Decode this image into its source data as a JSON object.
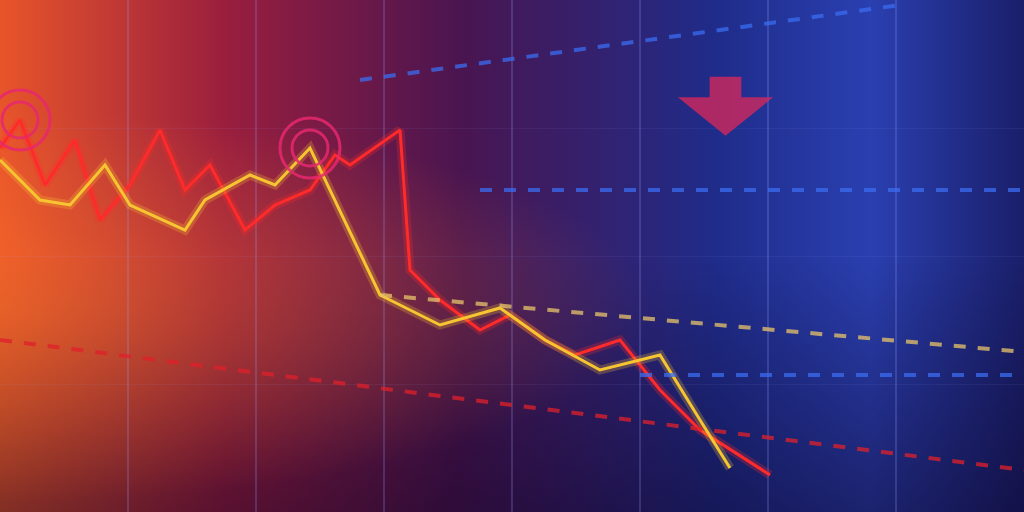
{
  "chart_data": {
    "type": "line",
    "xlim": [
      0,
      1024
    ],
    "ylim": [
      0,
      512
    ],
    "xticks": [
      0,
      128,
      256,
      384,
      512,
      640,
      768,
      896,
      1024
    ],
    "yticks": [
      0,
      128,
      256,
      384,
      512
    ],
    "grid": true,
    "tick_labels": false,
    "series": [
      {
        "color": "#ff2b2b",
        "line_style": "solid",
        "x": [
          0,
          20,
          45,
          75,
          100,
          130,
          160,
          185,
          210,
          245,
          275,
          310,
          335,
          350,
          400,
          410,
          440,
          480,
          510,
          545,
          575,
          620,
          660,
          700,
          770
        ],
        "values": [
          364,
          392,
          327,
          372,
          292,
          327,
          382,
          322,
          347,
          282,
          307,
          322,
          357,
          347,
          382,
          242,
          212,
          182,
          197,
          172,
          157,
          172,
          122,
          82,
          37
        ]
      },
      {
        "color": "#f7c531",
        "line_style": "solid",
        "x": [
          0,
          40,
          70,
          105,
          130,
          185,
          205,
          250,
          275,
          310,
          380,
          440,
          500,
          545,
          600,
          660,
          700,
          730
        ],
        "values": [
          352,
          312,
          307,
          347,
          307,
          282,
          312,
          337,
          327,
          364,
          217,
          187,
          204,
          172,
          142,
          157,
          92,
          44
        ]
      },
      {
        "color": "#e8c46a",
        "line_style": "dash",
        "x": [
          380,
          1024
        ],
        "values": [
          217,
          160
        ]
      },
      {
        "color": "#e0202a",
        "line_style": "dash",
        "x": [
          0,
          1024
        ],
        "values": [
          172,
          42
        ]
      },
      {
        "color": "#3a6cf0",
        "line_style": "dash",
        "x": [
          360,
          900
        ],
        "values": [
          432,
          507
        ]
      },
      {
        "color": "#3a6cf0",
        "line_style": "dash",
        "x": [
          480,
          1024
        ],
        "values": [
          322,
          322
        ]
      },
      {
        "color": "#3a6cf0",
        "line_style": "dash",
        "x": [
          640,
          1024
        ],
        "values": [
          137,
          137
        ]
      }
    ]
  }
}
